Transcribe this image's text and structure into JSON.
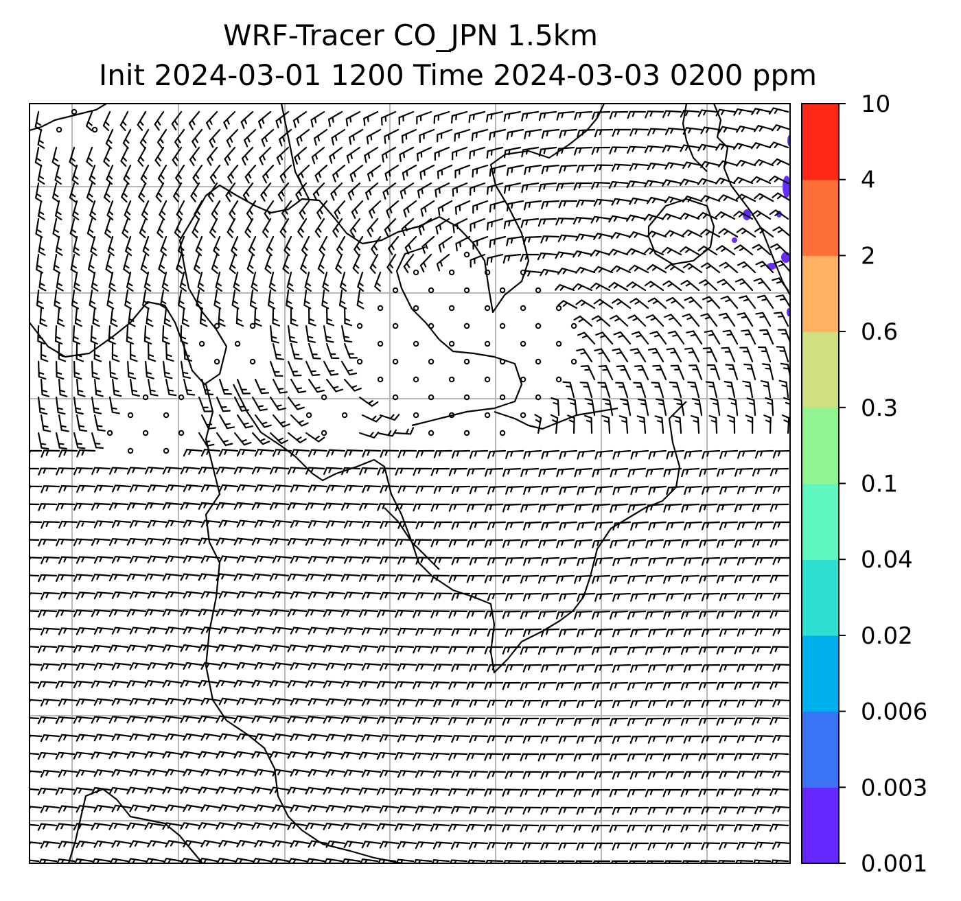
{
  "title": {
    "line1": "WRF-Tracer CO_JPN 1.5km",
    "line2": "Init 2024-03-01 1200 Time 2024-03-03 0200 ppm"
  },
  "map": {
    "grid": true,
    "field": "CO_JPN tracer concentration",
    "overlay": "wind barbs",
    "concentration_patches": [
      {
        "location": "north-east corner, near coast",
        "bin": "0.001-0.003",
        "color": "#6a2bff"
      }
    ]
  },
  "colorbar": {
    "position": "right",
    "tick_labels": [
      "0.001",
      "0.003",
      "0.006",
      "0.02",
      "0.04",
      "0.1",
      "0.3",
      "0.6",
      "2",
      "4",
      "10"
    ],
    "colors": [
      "#6428ff",
      "#3a73f5",
      "#00b0ec",
      "#2ee0d0",
      "#5ff7c0",
      "#90f590",
      "#d0e080",
      "#ffb060",
      "#ff7038",
      "#ff2818"
    ]
  }
}
